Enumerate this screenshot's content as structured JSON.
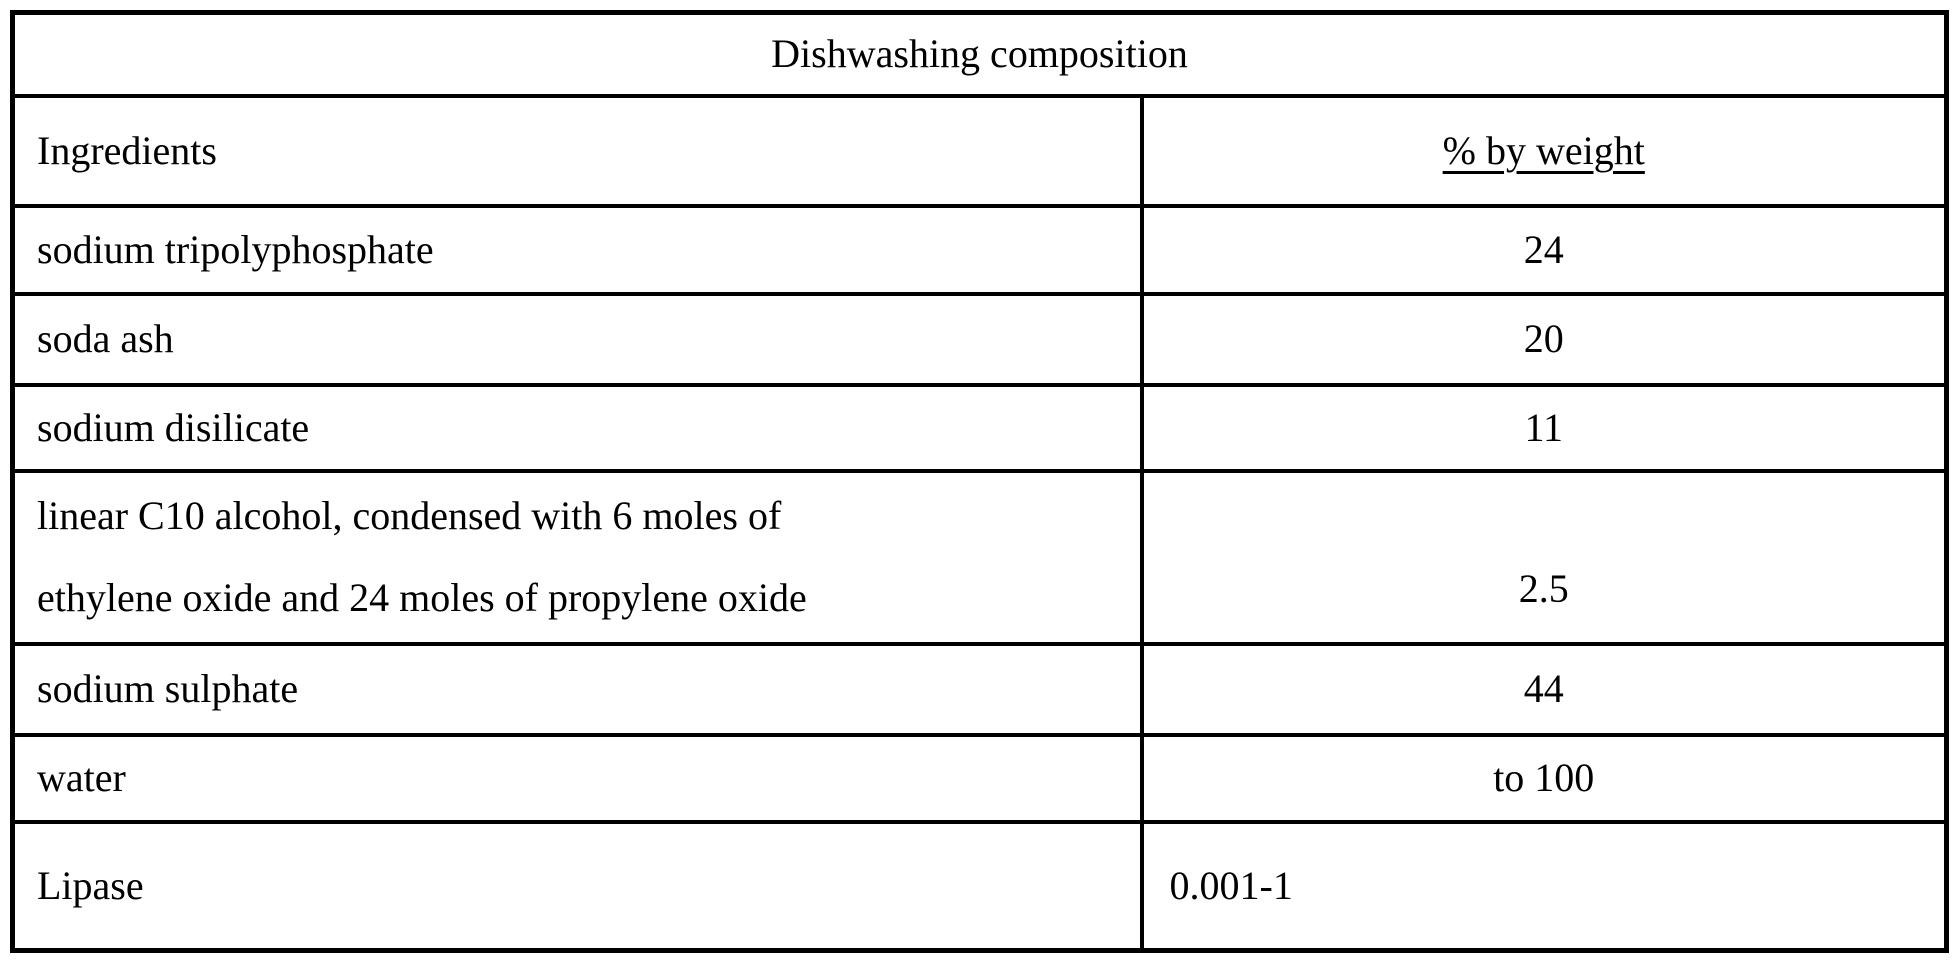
{
  "table": {
    "title": "Dishwashing composition",
    "headers": {
      "ingredients": "Ingredients",
      "weight": "% by weight"
    },
    "rows": [
      {
        "ingredient": "sodium tripolyphosphate",
        "value": "24"
      },
      {
        "ingredient": "soda ash",
        "value": "20"
      },
      {
        "ingredient": "sodium disilicate",
        "value": "11"
      },
      {
        "ingredient": "linear C10 alcohol, condensed with 6 moles of ethylene oxide and 24 moles of propylene oxide",
        "ingredient_lines": {
          "line1": "linear C10 alcohol, condensed with 6 moles of",
          "line2": "ethylene oxide and 24 moles of propylene oxide"
        },
        "value": "2.5"
      },
      {
        "ingredient": "sodium sulphate",
        "value": "44"
      },
      {
        "ingredient": "water",
        "value": "to 100"
      },
      {
        "ingredient": "Lipase",
        "value": "0.001-1"
      }
    ],
    "colors": {
      "border": "#000000",
      "background": "#ffffff",
      "text": "#000000"
    }
  }
}
